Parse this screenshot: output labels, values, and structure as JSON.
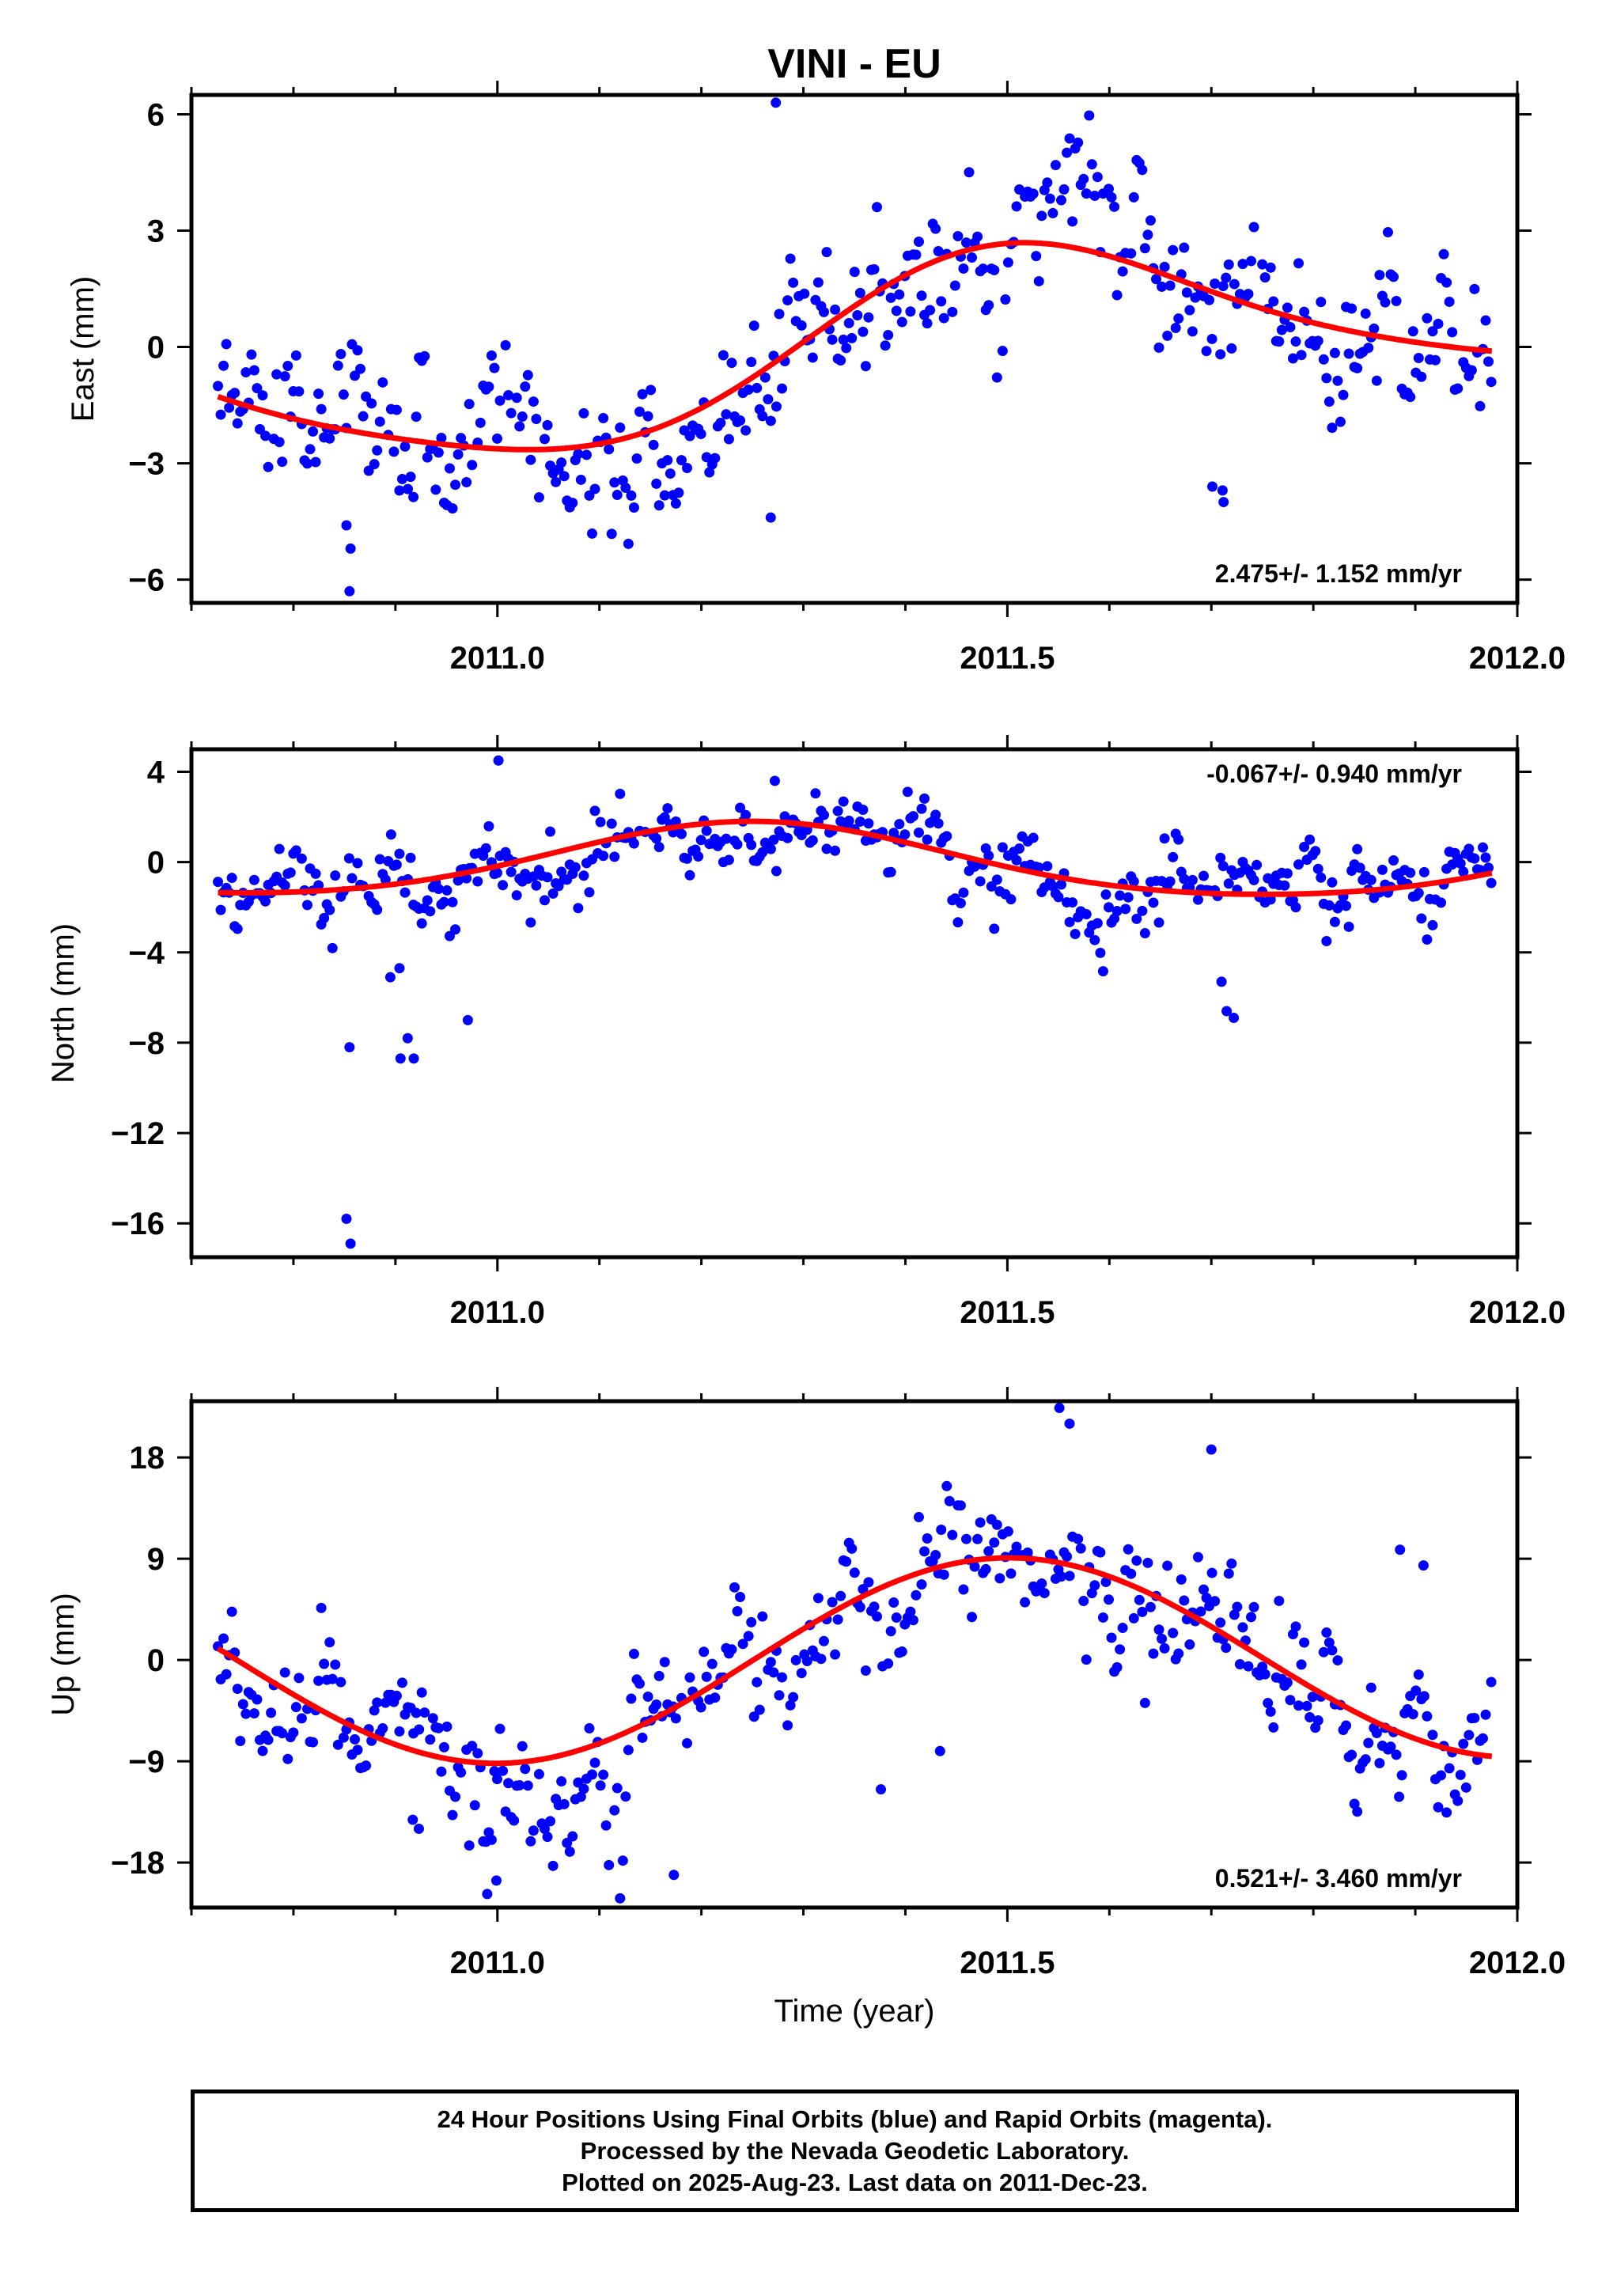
{
  "title": "VINI - EU",
  "footer": {
    "line1": "24 Hour Positions Using Final Orbits (blue) and Rapid Orbits (magenta).",
    "line2": "Processed by the Nevada Geodetic Laboratory.",
    "line3": "Plotted on 2025-Aug-23. Last data on 2011-Dec-23."
  },
  "colors": {
    "points": "#0000ff",
    "fit": "#ff0000",
    "axes": "#000000"
  },
  "chart_data": [
    {
      "type": "scatter",
      "id": "east",
      "ylabel": "East (mm)",
      "xlabel": "",
      "xlim": [
        2010.7,
        2012.0
      ],
      "ylim": [
        -6.6,
        6.5
      ],
      "xticks": [
        2011.0,
        2011.5,
        2012.0
      ],
      "xtick_labels": [
        "2011.0",
        "2011.5",
        "2012.0"
      ],
      "yticks": [
        6,
        3,
        0,
        -3,
        -6
      ],
      "ytick_labels": [
        "6",
        "3",
        "0",
        "−3",
        "−6"
      ],
      "rate_text": "2.475+/- 1.152 mm/yr",
      "rate_position": "bottom-right",
      "fit": {
        "offset": 0.0,
        "rate": 2.475,
        "c1": -2.03,
        "s1": -0.27,
        "c2": 0.27,
        "s2": -0.17
      },
      "fit_range": [
        2010.726,
        2011.975
      ],
      "outliers": [
        [
          2010.855,
          -6.3
        ],
        [
          2010.856,
          -5.2
        ],
        [
          2011.268,
          -4.4
        ],
        [
          2011.273,
          6.3
        ],
        [
          2011.711,
          -3.7
        ],
        [
          2011.701,
          -3.6
        ],
        [
          2011.712,
          -4.0
        ],
        [
          2010.852,
          -4.6
        ]
      ]
    },
    {
      "type": "scatter",
      "id": "north",
      "ylabel": "North (mm)",
      "xlabel": "",
      "xlim": [
        2010.7,
        2012.0
      ],
      "ylim": [
        -17.5,
        5.0
      ],
      "xticks": [
        2011.0,
        2011.5,
        2012.0
      ],
      "xtick_labels": [
        "2011.0",
        "2011.5",
        "2012.0"
      ],
      "yticks": [
        4,
        0,
        -4,
        -8,
        -12,
        -16
      ],
      "ytick_labels": [
        "4",
        "0",
        "−4",
        "−8",
        "−12",
        "−16"
      ],
      "rate_text": "-0.067+/- 0.940 mm/yr",
      "rate_position": "top-right",
      "fit": {
        "offset": 0.0,
        "rate": -0.067,
        "c1": 0.0,
        "s1": 1.6,
        "c2": -0.2,
        "s2": 0.0
      },
      "fit_range": [
        2010.726,
        2011.975
      ],
      "outliers": [
        [
          2010.852,
          -15.8
        ],
        [
          2010.856,
          -16.9
        ],
        [
          2010.855,
          -8.2
        ],
        [
          2010.905,
          -8.7
        ],
        [
          2010.912,
          -7.8
        ],
        [
          2010.918,
          -8.7
        ],
        [
          2010.895,
          -5.1
        ],
        [
          2010.904,
          -4.7
        ],
        [
          2010.971,
          -7.0
        ],
        [
          2011.272,
          3.6
        ],
        [
          2011.715,
          -6.6
        ],
        [
          2011.71,
          -5.3
        ],
        [
          2011.722,
          -6.9
        ],
        [
          2011.001,
          4.5
        ]
      ]
    },
    {
      "type": "scatter",
      "id": "up",
      "ylabel": "Up (mm)",
      "xlabel": "Time (year)",
      "xlim": [
        2010.7,
        2012.0
      ],
      "ylim": [
        -22.0,
        23.0
      ],
      "xticks": [
        2011.0,
        2011.5,
        2012.0
      ],
      "xtick_labels": [
        "2011.0",
        "2011.5",
        "2012.0"
      ],
      "yticks": [
        18,
        9,
        0,
        -9,
        -18
      ],
      "ytick_labels": [
        "18",
        "9",
        "0",
        "−9",
        "−18"
      ],
      "rate_text": "0.521+/- 3.460 mm/yr",
      "rate_position": "bottom-right",
      "fit": {
        "offset": 0.0,
        "rate": 0.521,
        "c1": -9.0,
        "s1": 0.0,
        "c2": 0.0,
        "s2": 0.0
      },
      "fit_range": [
        2010.726,
        2011.975
      ],
      "outliers": [
        [
          2011.551,
          22.4
        ],
        [
          2011.561,
          21.0
        ],
        [
          2010.999,
          -19.6
        ],
        [
          2010.99,
          -20.8
        ],
        [
          2011.173,
          -19.1
        ],
        [
          2010.923,
          -15.0
        ],
        [
          2010.917,
          -14.2
        ],
        [
          2011.376,
          -11.5
        ],
        [
          2011.434,
          -8.1
        ],
        [
          2011.7,
          18.7
        ],
        [
          2011.885,
          9.8
        ],
        [
          2011.908,
          8.4
        ]
      ]
    }
  ]
}
